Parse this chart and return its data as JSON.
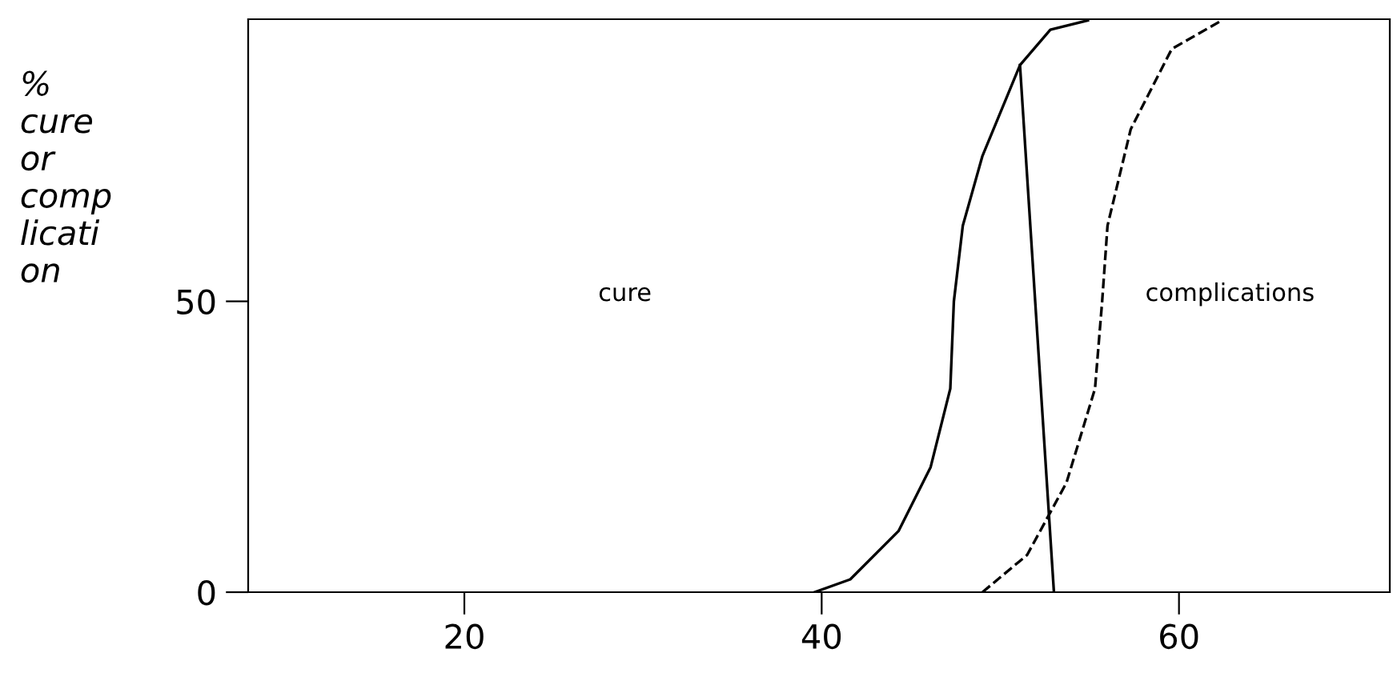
{
  "chart_data": {
    "type": "line",
    "ylabel": "%\ncure\nor\ncomp\nlicati\non",
    "xlim": [
      7.9,
      71.8
    ],
    "ylim": [
      0,
      98.5
    ],
    "xticks": [
      20,
      40,
      60
    ],
    "yticks": [
      0,
      50
    ],
    "grid": false,
    "legend": false,
    "series": [
      {
        "color": "#000000",
        "line_style": "solid",
        "x": [
          39.6,
          41.6,
          44.3,
          46.1,
          47.2,
          47.4,
          47.9,
          49.0,
          51.1,
          52.8,
          54.9
        ],
        "values": [
          0,
          2.2,
          10.5,
          21.5,
          35,
          50,
          63,
          75,
          90.6,
          96.7,
          98.3
        ]
      },
      {
        "color": "#000000",
        "line_style": "dashed",
        "x": [
          49.0,
          51.5,
          53.7,
          55.3,
          55.7,
          56.0,
          57.3,
          59.6,
          62.4
        ],
        "values": [
          0,
          6.4,
          18.8,
          35,
          50,
          63,
          79.6,
          93.4,
          98.3
        ]
      },
      {
        "color": "#000000",
        "line_style": "solid",
        "x": [
          51.1,
          53.0
        ],
        "values": [
          90.6,
          0
        ]
      }
    ],
    "annotations": [
      "cure",
      "complications"
    ]
  }
}
